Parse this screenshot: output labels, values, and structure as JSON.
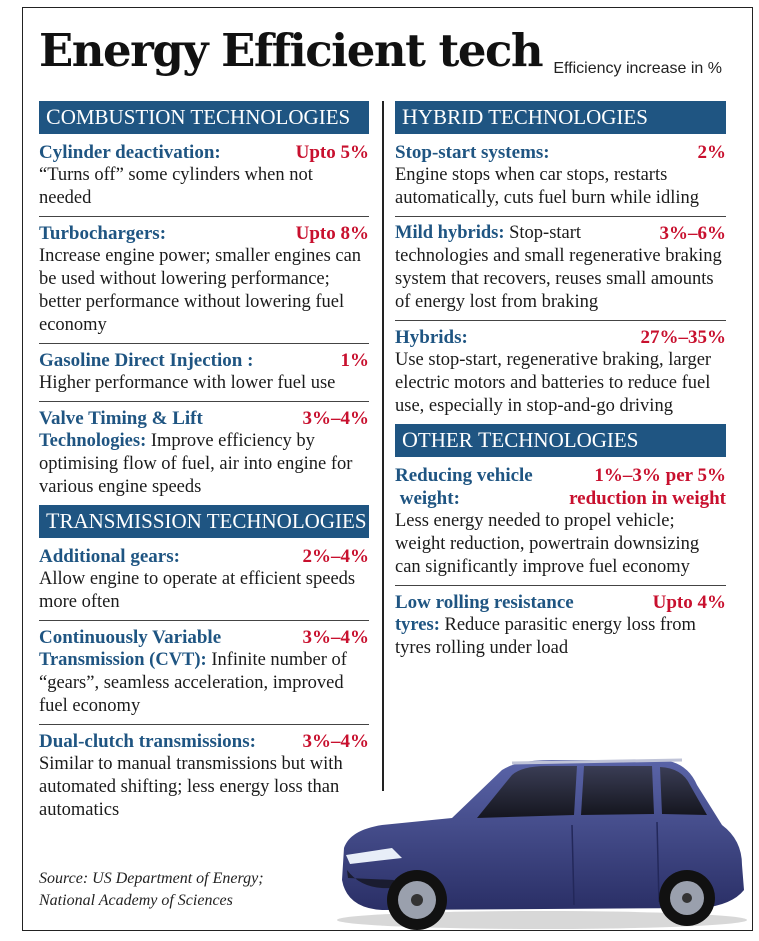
{
  "header": {
    "title": "Energy Efficient tech",
    "subtitle": "Efficiency increase in %"
  },
  "left": {
    "combustion": {
      "header_cap": "C",
      "header_rest": "OMBUSTION TECHNOLOGIES",
      "items": [
        {
          "name": "Cylinder deactivation:",
          "value": "Upto 5%",
          "desc": "“Turns off” some cylinders when not needed"
        },
        {
          "name": "Turbochargers:",
          "value": "Upto 8%",
          "desc": "Increase engine power; smaller engines can be used without lowering performance; better performance without lowering fuel economy"
        },
        {
          "name": "Gasoline Direct Injection :",
          "value": "1%",
          "desc": "Higher performance with lower fuel use"
        },
        {
          "name_line1": "Valve Timing & Lift",
          "name_line2": "Technologies:",
          "value": "3%–4%",
          "desc": "Improve efficiency by optimising flow of fuel, air into engine for various engine speeds"
        }
      ]
    },
    "transmission": {
      "header_cap": "T",
      "header_rest": "RANSMISSION TECHNOLOGIES",
      "items": [
        {
          "name": "Additional gears:",
          "value": "2%–4%",
          "desc": "Allow engine to operate at efficient speeds more often"
        },
        {
          "name_line1": "Continuously Variable",
          "name_line2": "Transmission (CVT):",
          "value": "3%–4%",
          "desc": "Infinite number of “gears”, seamless acceleration, improved fuel economy"
        },
        {
          "name": "Dual-clutch transmissions:",
          "value": "3%–4%",
          "desc": "Similar to manual transmissions but with automated shifting; less energy loss than automatics"
        }
      ]
    }
  },
  "right": {
    "hybrid": {
      "header_cap": "H",
      "header_rest": "YBRID TECHNOLOGIES",
      "items": [
        {
          "name": "Stop-start systems:",
          "value": "2%",
          "desc": "Engine stops when car stops, restarts automatically, cuts fuel burn while idling"
        },
        {
          "name": "Mild hybrids:",
          "value": "3%–6%",
          "desc": "Stop-start technologies and small regenerative braking system that recovers, reuses small amounts of energy lost from braking"
        },
        {
          "name": "Hybrids:",
          "value": "27%–35%",
          "desc": "Use stop-start, regenerative braking, larger electric motors and batteries to reduce fuel use, especially in stop-and-go driving"
        }
      ]
    },
    "other": {
      "header_cap_1": "O",
      "header_rest_1": "THER ",
      "header_cap_2": "T",
      "header_rest_2": "ECHNOLOGIES",
      "items": [
        {
          "name_line1": "Reducing vehicle",
          "name_line2": "weight:",
          "value_line1": "1%–3% per 5%",
          "value_line2": "reduction in weight",
          "desc": "Less energy needed to propel vehicle; weight reduction, powertrain downsizing can significantly improve fuel economy"
        },
        {
          "name_line1": "Low rolling resistance",
          "name_line2": "tyres:",
          "value": "Upto 4%",
          "desc": "Reduce parasitic energy loss from tyres rolling under load"
        }
      ]
    }
  },
  "source": {
    "line1": "Source: US Department of Energy;",
    "line2": "National Academy of Sciences"
  },
  "colors": {
    "header_bg": "#1f5582",
    "name": "#1f5582",
    "value": "#c8102e"
  }
}
